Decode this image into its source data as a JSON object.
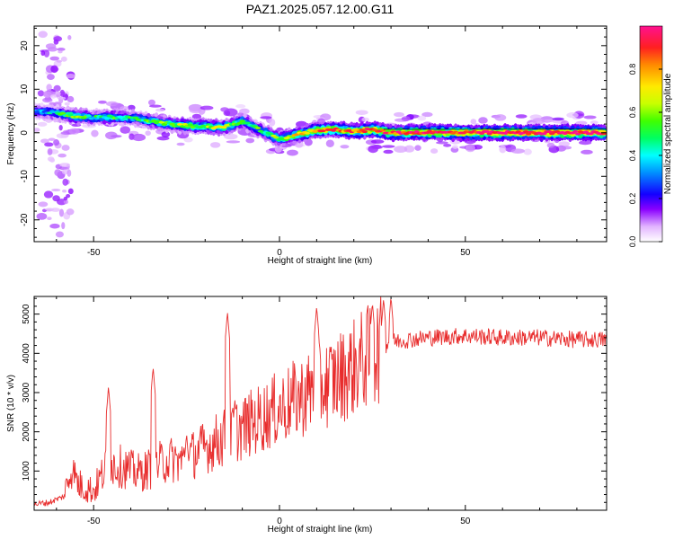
{
  "title": "PAZ1.2025.057.12.00.G11",
  "chart_data": [
    {
      "type": "heatmap",
      "xlabel": "Height of straight line (km)",
      "ylabel": "Frequency (Hz)",
      "xlim": [
        -66,
        88
      ],
      "ylim": [
        -25,
        24.5
      ],
      "xticks": [
        -50,
        0,
        50
      ],
      "yticks": [
        -20,
        -10,
        0,
        10,
        20
      ],
      "colorbar": {
        "label": "Normalized spectral amplitude",
        "range": [
          0,
          1
        ],
        "ticks": [
          0.0,
          0.2,
          0.4,
          0.6,
          0.8
        ]
      },
      "ridge": {
        "height_km": [
          -65,
          -60,
          -55,
          -50,
          -45,
          -40,
          -35,
          -30,
          -25,
          -20,
          -15,
          -10,
          -5,
          0,
          5,
          10,
          15,
          20,
          25,
          30,
          40,
          50,
          60,
          70,
          80,
          88
        ],
        "frequency_hz": [
          5,
          4.5,
          3.8,
          3.5,
          3.6,
          3.4,
          2.8,
          2.0,
          1.6,
          1.4,
          1.2,
          2.6,
          0.5,
          -1.5,
          -0.4,
          0.6,
          0.8,
          0.3,
          0.7,
          0.0,
          0.1,
          0.0,
          0.0,
          0.0,
          0.0,
          0.0
        ],
        "amplitude": [
          0.35,
          0.4,
          0.6,
          0.45,
          0.5,
          0.45,
          0.5,
          0.55,
          0.6,
          0.6,
          0.6,
          0.55,
          0.5,
          0.6,
          0.7,
          0.8,
          0.85,
          0.85,
          0.9,
          0.9,
          0.9,
          0.95,
          1.0,
          1.0,
          1.0,
          1.0
        ]
      },
      "grid": false
    },
    {
      "type": "line",
      "xlabel": "Height of straight line (km)",
      "ylabel": "SNR (10 * v/v)",
      "xlim": [
        -66,
        88
      ],
      "ylim": [
        0,
        5450
      ],
      "xticks": [
        -50,
        0,
        50
      ],
      "yticks": [
        1000,
        2000,
        3000,
        4000,
        5000
      ],
      "series": [
        {
          "color": "#e82c2c",
          "trend": {
            "x": [
              -66,
              -62,
              -58,
              -56,
              -54,
              -50,
              -46,
              -42,
              -38,
              -34,
              -30,
              -26,
              -22,
              -18,
              -14,
              -10,
              -6,
              -2,
              2,
              6,
              10,
              14,
              18,
              22,
              26,
              30,
              40,
              50,
              60,
              70,
              80,
              88
            ],
            "y": [
              150,
              200,
              350,
              1050,
              650,
              500,
              1200,
              1100,
              950,
              1100,
              1300,
              1250,
              1500,
              1700,
              1900,
              2100,
              2300,
              2500,
              2700,
              2900,
              3100,
              3300,
              3500,
              3800,
              4050,
              4300,
              4400,
              4450,
              4400,
              4400,
              4350,
              4350
            ]
          },
          "peaks": {
            "x": [
              -55.5,
              -46,
              -34,
              -25,
              -14,
              -12,
              10,
              25,
              28,
              30
            ],
            "y": [
              1050,
              3150,
              3650,
              1950,
              5050,
              2800,
              5200,
              5300,
              5400,
              5450
            ]
          }
        }
      ],
      "grid": false
    }
  ]
}
